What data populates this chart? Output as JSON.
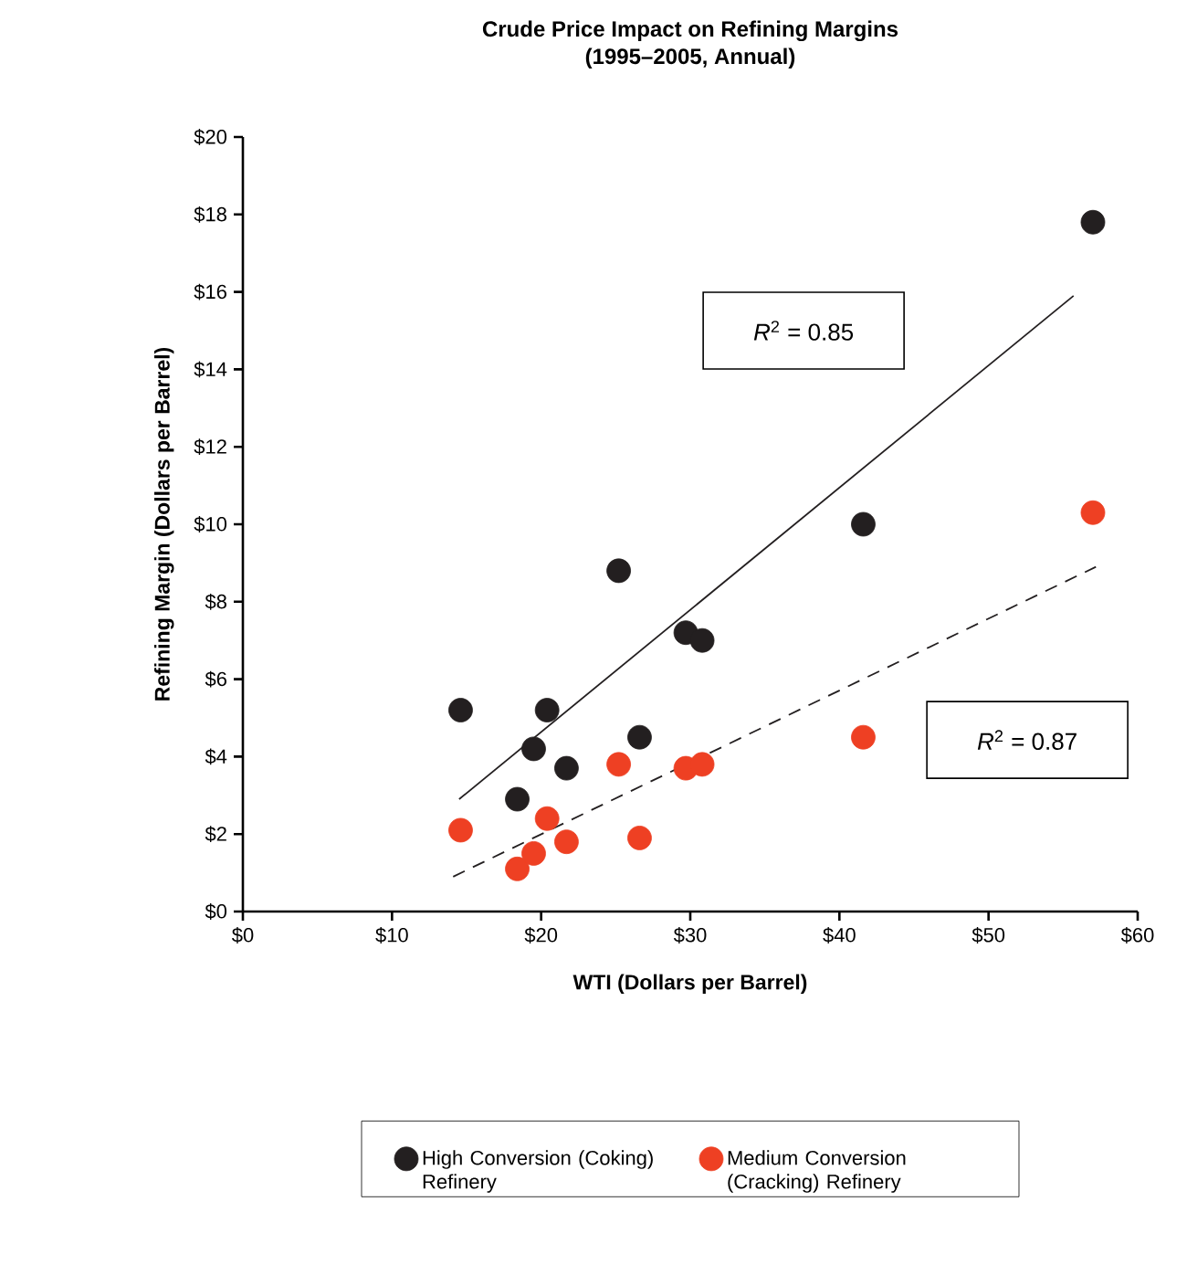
{
  "chart_data": {
    "type": "scatter",
    "title": "Crude Price Impact on Refining Margins",
    "subtitle": "(1995–2005, Annual)",
    "xlabel": "WTI (Dollars per Barrel)",
    "ylabel": "Refining Margin (Dollars per Barrel)",
    "xlim": [
      0,
      60
    ],
    "ylim": [
      0,
      20
    ],
    "xticks": [
      {
        "value": 0,
        "label": "$0"
      },
      {
        "value": 10,
        "label": "$10"
      },
      {
        "value": 20,
        "label": "$20"
      },
      {
        "value": 30,
        "label": "$30"
      },
      {
        "value": 40,
        "label": "$40"
      },
      {
        "value": 50,
        "label": "$50"
      },
      {
        "value": 60,
        "label": "$60"
      }
    ],
    "yticks": [
      {
        "value": 0,
        "label": "$0"
      },
      {
        "value": 2,
        "label": "$2"
      },
      {
        "value": 4,
        "label": "$4"
      },
      {
        "value": 6,
        "label": "$6"
      },
      {
        "value": 8,
        "label": "$8"
      },
      {
        "value": 10,
        "label": "$10"
      },
      {
        "value": 12,
        "label": "$12"
      },
      {
        "value": 14,
        "label": "$14"
      },
      {
        "value": 16,
        "label": "$16"
      },
      {
        "value": 18,
        "label": "$18"
      },
      {
        "value": 20,
        "label": "$20"
      }
    ],
    "grid": false,
    "legend": "bottom",
    "annotations": [
      "*R*$^{2}$ = 0.85",
      "*R*$^{2}$ = 0.87"
    ],
    "series": [
      {
        "name": "High Conversion (Coking) Refinery",
        "marker": "circle",
        "color": "#231f20",
        "x": [
          14.6,
          20.4,
          19.5,
          18.4,
          21.7,
          25.2,
          26.6,
          29.7,
          30.8,
          41.6,
          57.0
        ],
        "values": [
          5.2,
          5.2,
          4.2,
          2.9,
          3.7,
          8.8,
          4.5,
          7.2,
          7.0,
          10.0,
          17.8
        ]
      },
      {
        "name": "Medium Conversion (Cracking) Refinery",
        "marker": "circle",
        "color": "#ee4023",
        "x": [
          14.6,
          18.4,
          19.5,
          20.4,
          21.7,
          25.2,
          26.6,
          29.7,
          30.8,
          41.6,
          57.0
        ],
        "values": [
          2.1,
          1.1,
          1.5,
          2.4,
          1.8,
          3.8,
          1.9,
          3.7,
          3.8,
          4.5,
          10.3
        ]
      },
      {
        "type": "line",
        "marker": "none",
        "line_style": "solid",
        "color": "#231f20",
        "x": [
          14.5,
          55.7
        ],
        "values": [
          2.9,
          15.9
        ]
      },
      {
        "type": "line",
        "marker": "none",
        "line_style": "dashed",
        "color": "#231f20",
        "x": [
          14.1,
          57.2
        ],
        "values": [
          0.9,
          8.9
        ]
      }
    ]
  }
}
